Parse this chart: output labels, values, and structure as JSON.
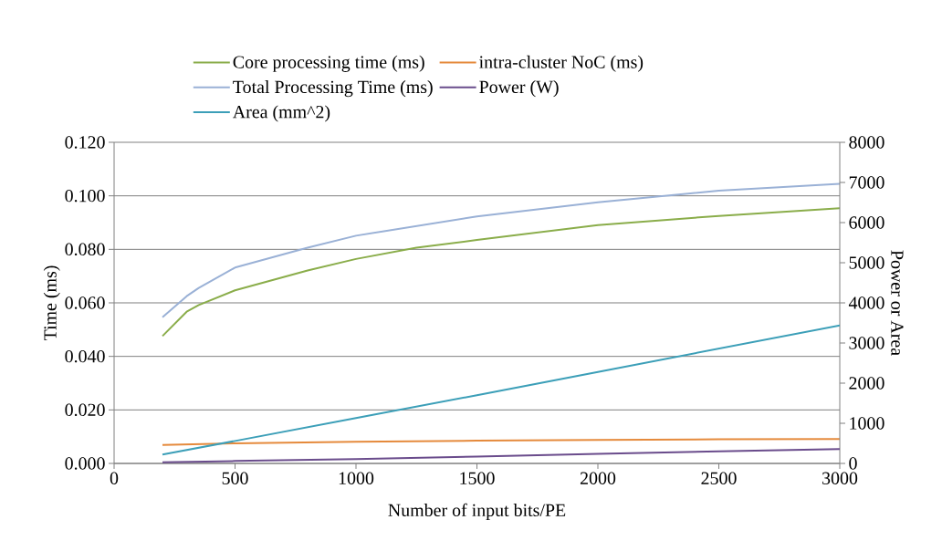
{
  "chart_data": {
    "type": "line",
    "xlabel": "Number of input bits/PE",
    "ylabel": "Time (ms)",
    "y2label": "Power or Area",
    "xlim": [
      0,
      3000
    ],
    "xticks": [
      0,
      500,
      1000,
      1500,
      2000,
      2500,
      3000
    ],
    "ylim": [
      0,
      0.12
    ],
    "yticks": [
      {
        "value": 0,
        "label": "0.000"
      },
      {
        "value": 0.02,
        "label": "0.020"
      },
      {
        "value": 0.04,
        "label": "0.040"
      },
      {
        "value": 0.06,
        "label": "0.060"
      },
      {
        "value": 0.08,
        "label": "0.080"
      },
      {
        "value": 0.1,
        "label": "0.100"
      },
      {
        "value": 0.12,
        "label": "0.120"
      }
    ],
    "y2lim": [
      0,
      8000
    ],
    "y2ticks": [
      0,
      1000,
      2000,
      3000,
      4000,
      5000,
      6000,
      7000,
      8000
    ],
    "grid": "y",
    "legend": "top",
    "series": [
      {
        "name": "Core processing time (ms)",
        "color": "#8aad4a",
        "x": [
          200,
          300,
          350,
          500,
          800,
          1000,
          1250,
          1500,
          2000,
          2500,
          3000
        ],
        "values": [
          0.0476,
          0.0567,
          0.0592,
          0.0647,
          0.0721,
          0.0764,
          0.0806,
          0.0835,
          0.0891,
          0.0925,
          0.0954
        ]
      },
      {
        "name": "intra-cluster NoC (ms)",
        "color": "#e58a3c",
        "x": [
          200,
          500,
          1000,
          1500,
          2000,
          2500,
          3000
        ],
        "values": [
          0.0069,
          0.0075,
          0.0081,
          0.0085,
          0.0088,
          0.009,
          0.0091
        ]
      },
      {
        "name": "Total Processing Time (ms)",
        "color": "#9ab1d6",
        "x": [
          200,
          300,
          350,
          500,
          800,
          1000,
          1500,
          2000,
          2500,
          3000
        ],
        "values": [
          0.0546,
          0.0625,
          0.0656,
          0.0732,
          0.0806,
          0.0851,
          0.0923,
          0.0976,
          0.1019,
          0.1045
        ]
      },
      {
        "name": "Power (W)",
        "color": "#6a4c8c",
        "axis": "y2",
        "x": [
          200,
          500,
          1000,
          1500,
          2000,
          2500,
          3000
        ],
        "values": [
          30,
          60,
          110,
          170,
          240,
          300,
          360
        ]
      },
      {
        "name": "Area (mm^2)",
        "color": "#3c9fb8",
        "axis": "y2",
        "x": [
          200,
          500,
          1000,
          1500,
          2000,
          2500,
          3000
        ],
        "values": [
          220,
          560,
          1130,
          1700,
          2280,
          2860,
          3440
        ]
      }
    ]
  }
}
